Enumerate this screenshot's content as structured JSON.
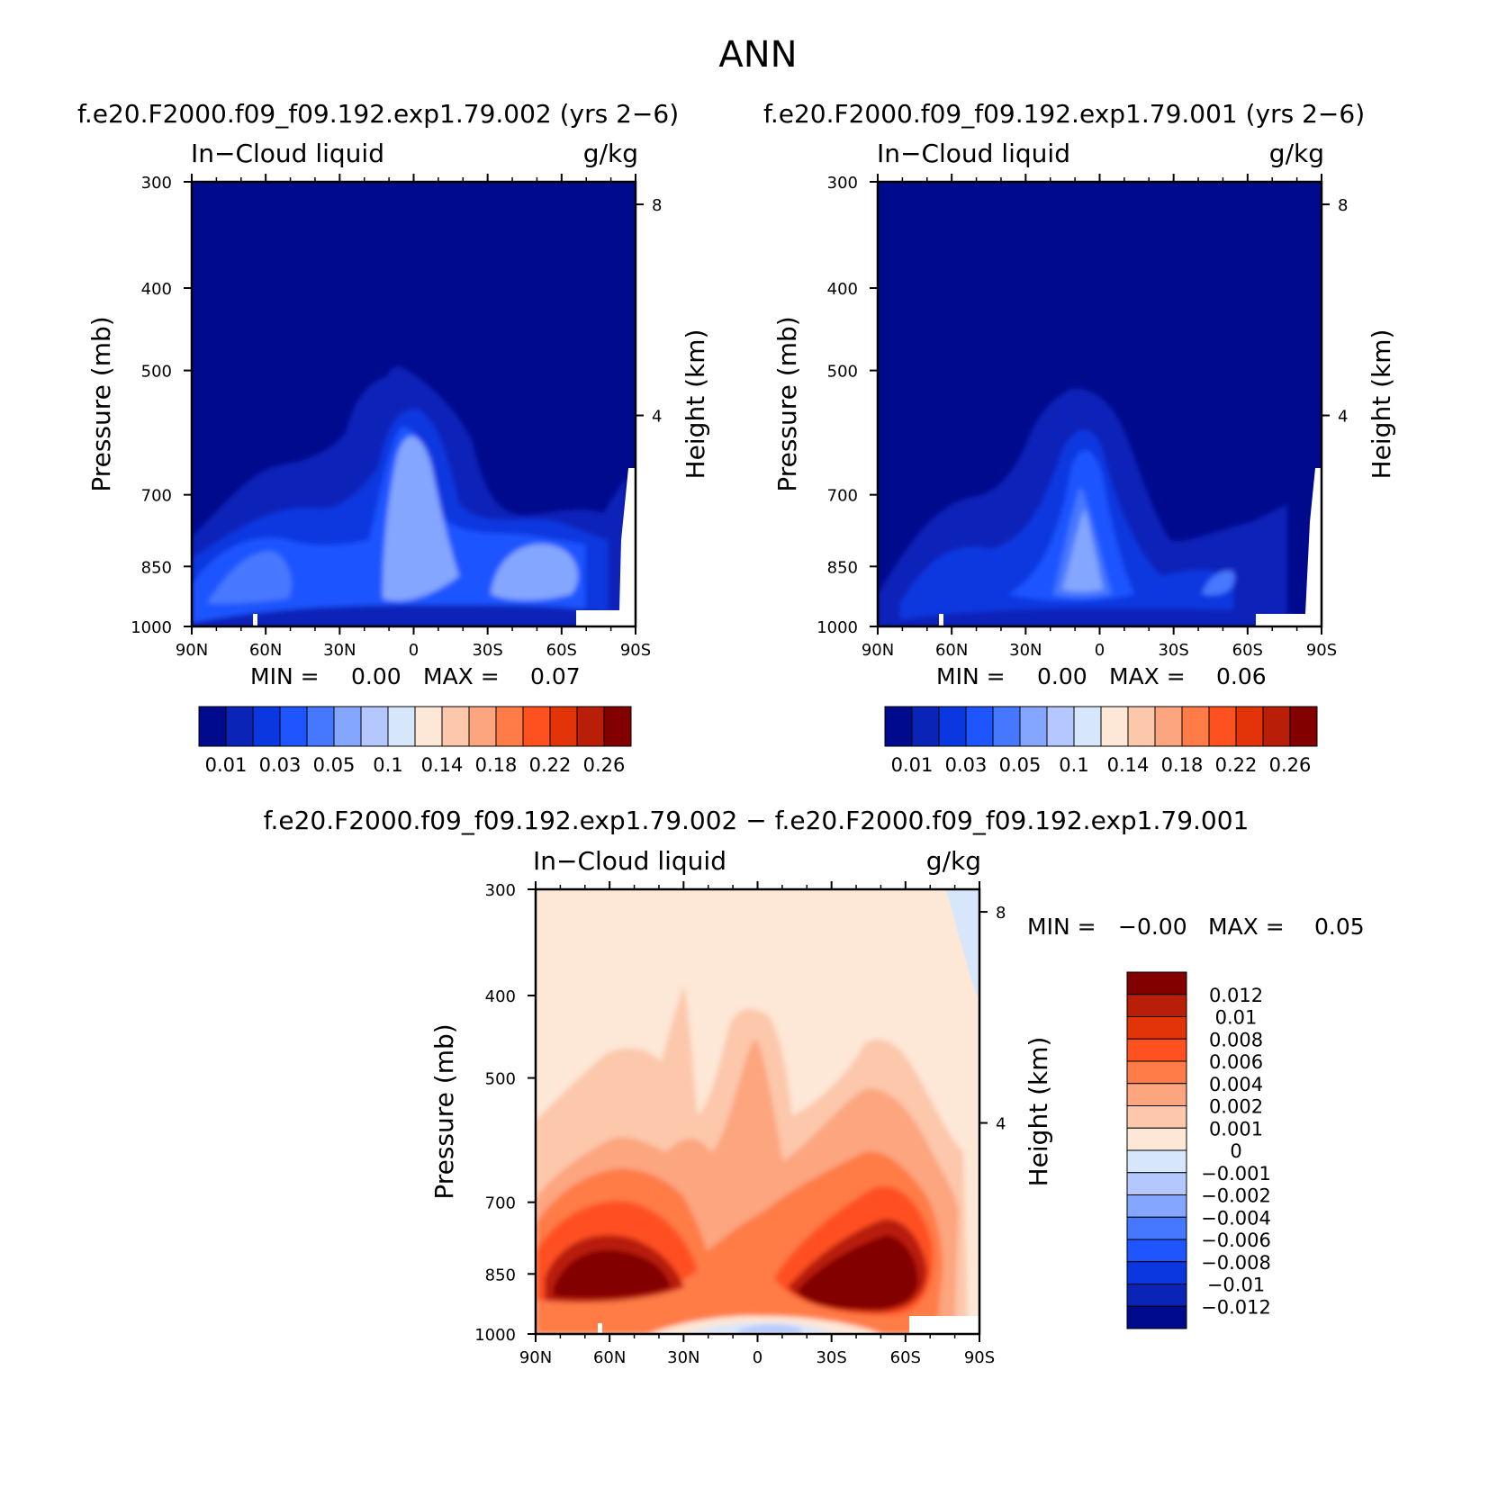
{
  "figure": {
    "main_title": "ANN",
    "left_title": "f.e20.F2000.f09_f09.192.exp1.79.002 (yrs 2−6)",
    "right_title": "f.e20.F2000.f09_f09.192.exp1.79.001 (yrs 2−6)",
    "diff_title": "f.e20.F2000.f09_f09.192.exp1.79.002 − f.e20.F2000.f09_f09.192.exp1.79.001"
  },
  "chart_data": [
    {
      "id": "case-002",
      "type": "heatmap",
      "variable_label": "In−Cloud liquid",
      "units_label": "g/kg",
      "ylabel": "Pressure (mb)",
      "y2label": "Height (km)",
      "x_ticks": [
        "90N",
        "60N",
        "30N",
        "0",
        "30S",
        "60S",
        "90S"
      ],
      "x_range": [
        90,
        -90
      ],
      "y_ticks": [
        "300",
        "400",
        "500",
        "700",
        "850",
        "1000"
      ],
      "y_range_mb": [
        300,
        1000
      ],
      "y2_ticks": [
        "8",
        "4"
      ],
      "min_label": "MIN =",
      "min_value": "0.00",
      "max_label": "MAX =",
      "max_value": "0.07",
      "colorbar_labels": [
        "0.01",
        "0.03",
        "0.05",
        "0.1",
        "0.14",
        "0.18",
        "0.22",
        "0.26"
      ],
      "colorbar_colors": [
        "#000a8c",
        "#0a24b8",
        "#0a37e0",
        "#1e55ff",
        "#4678ff",
        "#84a6ff",
        "#b4c8ff",
        "#d7e7fb",
        "#fde7d6",
        "#fcc7ab",
        "#fca57f",
        "#ff7b47",
        "#ff5020",
        "#e23408",
        "#b81e08",
        "#830000"
      ]
    },
    {
      "id": "case-001",
      "type": "heatmap",
      "variable_label": "In−Cloud liquid",
      "units_label": "g/kg",
      "ylabel": "Pressure (mb)",
      "y2label": "Height (km)",
      "x_ticks": [
        "90N",
        "60N",
        "30N",
        "0",
        "30S",
        "60S",
        "90S"
      ],
      "x_range": [
        90,
        -90
      ],
      "y_ticks": [
        "300",
        "400",
        "500",
        "700",
        "850",
        "1000"
      ],
      "y_range_mb": [
        300,
        1000
      ],
      "y2_ticks": [
        "8",
        "4"
      ],
      "min_label": "MIN =",
      "min_value": "0.00",
      "max_label": "MAX =",
      "max_value": "0.06",
      "colorbar_labels": [
        "0.01",
        "0.03",
        "0.05",
        "0.1",
        "0.14",
        "0.18",
        "0.22",
        "0.26"
      ],
      "colorbar_colors": [
        "#000a8c",
        "#0a24b8",
        "#0a37e0",
        "#1e55ff",
        "#4678ff",
        "#84a6ff",
        "#b4c8ff",
        "#d7e7fb",
        "#fde7d6",
        "#fcc7ab",
        "#fca57f",
        "#ff7b47",
        "#ff5020",
        "#e23408",
        "#b81e08",
        "#830000"
      ]
    },
    {
      "id": "difference",
      "type": "heatmap",
      "variable_label": "In−Cloud liquid",
      "units_label": "g/kg",
      "ylabel": "Pressure (mb)",
      "y2label": "Height (km)",
      "x_ticks": [
        "90N",
        "60N",
        "30N",
        "0",
        "30S",
        "60S",
        "90S"
      ],
      "x_range": [
        90,
        -90
      ],
      "y_ticks": [
        "300",
        "400",
        "500",
        "700",
        "850",
        "1000"
      ],
      "y_range_mb": [
        300,
        1000
      ],
      "y2_ticks": [
        "8",
        "4"
      ],
      "min_label": "MIN =",
      "min_value": "−0.00",
      "max_label": "MAX =",
      "max_value": "0.05",
      "colorbar_labels": [
        "0.012",
        "0.01",
        "0.008",
        "0.006",
        "0.004",
        "0.002",
        "0.001",
        "0",
        "−0.001",
        "−0.002",
        "−0.004",
        "−0.006",
        "−0.008",
        "−0.01",
        "−0.012"
      ],
      "colorbar_colors": [
        "#830000",
        "#b81e08",
        "#e23408",
        "#ff5020",
        "#ff7b47",
        "#fca57f",
        "#fcc7ab",
        "#fde7d6",
        "#d7e7fb",
        "#b4c8ff",
        "#84a6ff",
        "#4678ff",
        "#1e55ff",
        "#0a37e0",
        "#0a24b8",
        "#000a8c"
      ]
    }
  ]
}
